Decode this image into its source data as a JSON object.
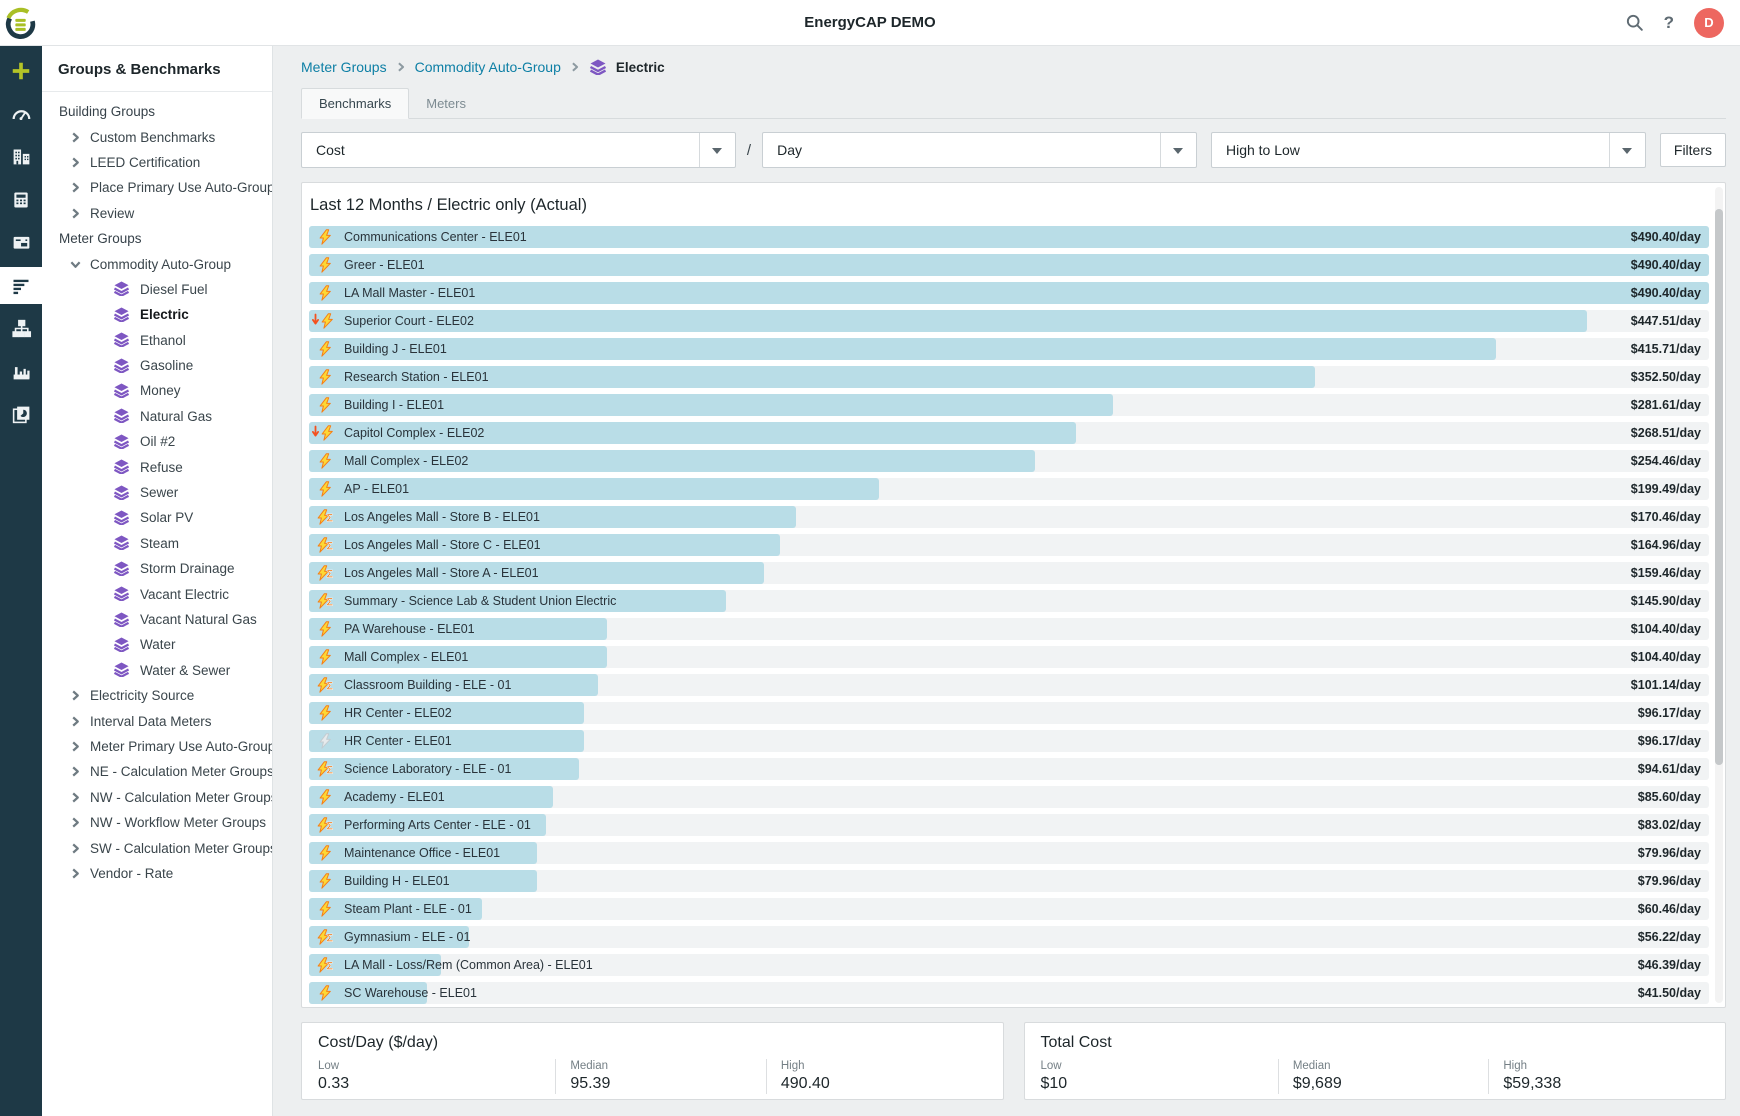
{
  "header": {
    "title": "EnergyCAP DEMO",
    "help_glyph": "?",
    "avatar_initial": "D"
  },
  "rail": {
    "items": [
      {
        "name": "add",
        "active": false
      },
      {
        "name": "dashboards",
        "active": false
      },
      {
        "name": "buildings",
        "active": false
      },
      {
        "name": "calculator",
        "active": false
      },
      {
        "name": "bills",
        "active": false
      },
      {
        "name": "groups-benchmarks",
        "active": true
      },
      {
        "name": "sitemap",
        "active": false
      },
      {
        "name": "plant",
        "active": false
      },
      {
        "name": "reports",
        "active": false
      }
    ]
  },
  "sidebar": {
    "title": "Groups & Benchmarks",
    "items": [
      {
        "label": "Building Groups",
        "level": 0,
        "icon": null
      },
      {
        "label": "Custom Benchmarks",
        "level": 1,
        "icon": "chevron-right"
      },
      {
        "label": "LEED Certification",
        "level": 1,
        "icon": "chevron-right"
      },
      {
        "label": "Place Primary Use Auto-Group",
        "level": 1,
        "icon": "chevron-right"
      },
      {
        "label": "Review",
        "level": 1,
        "icon": "chevron-right"
      },
      {
        "label": "Meter Groups",
        "level": 0,
        "icon": null
      },
      {
        "label": "Commodity Auto-Group",
        "level": 1,
        "icon": "chevron-down"
      },
      {
        "label": "Diesel Fuel",
        "level": 2,
        "icon": "layers"
      },
      {
        "label": "Electric",
        "level": 2,
        "icon": "layers",
        "selected": true
      },
      {
        "label": "Ethanol",
        "level": 2,
        "icon": "layers"
      },
      {
        "label": "Gasoline",
        "level": 2,
        "icon": "layers"
      },
      {
        "label": "Money",
        "level": 2,
        "icon": "layers"
      },
      {
        "label": "Natural Gas",
        "level": 2,
        "icon": "layers"
      },
      {
        "label": "Oil #2",
        "level": 2,
        "icon": "layers"
      },
      {
        "label": "Refuse",
        "level": 2,
        "icon": "layers"
      },
      {
        "label": "Sewer",
        "level": 2,
        "icon": "layers"
      },
      {
        "label": "Solar PV",
        "level": 2,
        "icon": "layers"
      },
      {
        "label": "Steam",
        "level": 2,
        "icon": "layers"
      },
      {
        "label": "Storm Drainage",
        "level": 2,
        "icon": "layers"
      },
      {
        "label": "Vacant Electric",
        "level": 2,
        "icon": "layers"
      },
      {
        "label": "Vacant Natural Gas",
        "level": 2,
        "icon": "layers"
      },
      {
        "label": "Water",
        "level": 2,
        "icon": "layers"
      },
      {
        "label": "Water & Sewer",
        "level": 2,
        "icon": "layers"
      },
      {
        "label": "Electricity Source",
        "level": 1,
        "icon": "chevron-right"
      },
      {
        "label": "Interval Data Meters",
        "level": 1,
        "icon": "chevron-right"
      },
      {
        "label": "Meter Primary Use Auto-Group",
        "level": 1,
        "icon": "chevron-right"
      },
      {
        "label": "NE - Calculation Meter Groups",
        "level": 1,
        "icon": "chevron-right"
      },
      {
        "label": "NW - Calculation Meter Groups",
        "level": 1,
        "icon": "chevron-right"
      },
      {
        "label": "NW - Workflow Meter Groups",
        "level": 1,
        "icon": "chevron-right"
      },
      {
        "label": "SW - Calculation Meter Groups",
        "level": 1,
        "icon": "chevron-right"
      },
      {
        "label": "Vendor - Rate",
        "level": 1,
        "icon": "chevron-right"
      }
    ]
  },
  "breadcrumb": {
    "links": [
      "Meter Groups",
      "Commodity Auto-Group"
    ],
    "current": "Electric"
  },
  "tabs": [
    {
      "label": "Benchmarks",
      "active": true
    },
    {
      "label": "Meters",
      "active": false
    }
  ],
  "controls": {
    "metric": "Cost",
    "separator": "/",
    "period": "Day",
    "sort": "High to Low",
    "filters_label": "Filters"
  },
  "chart_data": {
    "type": "bar",
    "title": "Last 12 Months / Electric only (Actual)",
    "unit": "$/day",
    "metric": "Cost",
    "period": "Day",
    "sort": "High to Low",
    "xlim": [
      0,
      490.4
    ],
    "max_value": 490.4,
    "rows": [
      {
        "label": "Communications Center - ELE01",
        "icon": "bolt",
        "value": 490.4,
        "display": "$490.40/day"
      },
      {
        "label": "Greer - ELE01",
        "icon": "bolt",
        "value": 490.4,
        "display": "$490.40/day"
      },
      {
        "label": "LA Mall Master - ELE01",
        "icon": "bolt",
        "value": 490.4,
        "display": "$490.40/day"
      },
      {
        "label": "Superior Court - ELE02",
        "icon": "bolt-down",
        "value": 447.51,
        "display": "$447.51/day"
      },
      {
        "label": "Building J - ELE01",
        "icon": "bolt",
        "value": 415.71,
        "display": "$415.71/day"
      },
      {
        "label": "Research Station - ELE01",
        "icon": "bolt",
        "value": 352.5,
        "display": "$352.50/day"
      },
      {
        "label": "Building I - ELE01",
        "icon": "bolt",
        "value": 281.61,
        "display": "$281.61/day"
      },
      {
        "label": "Capitol Complex - ELE02",
        "icon": "bolt-down",
        "value": 268.51,
        "display": "$268.51/day"
      },
      {
        "label": "Mall Complex - ELE02",
        "icon": "bolt",
        "value": 254.46,
        "display": "$254.46/day"
      },
      {
        "label": "AP - ELE01",
        "icon": "bolt",
        "value": 199.49,
        "display": "$199.49/day"
      },
      {
        "label": "Los Angeles Mall - Store B - ELE01",
        "icon": "bolt-sigma",
        "value": 170.46,
        "display": "$170.46/day"
      },
      {
        "label": "Los Angeles Mall - Store C - ELE01",
        "icon": "bolt-sigma",
        "value": 164.96,
        "display": "$164.96/day"
      },
      {
        "label": "Los Angeles Mall - Store A - ELE01",
        "icon": "bolt-sigma",
        "value": 159.46,
        "display": "$159.46/day"
      },
      {
        "label": "Summary - Science Lab & Student Union Electric",
        "icon": "bolt-sigma",
        "value": 145.9,
        "display": "$145.90/day"
      },
      {
        "label": "PA Warehouse - ELE01",
        "icon": "bolt",
        "value": 104.4,
        "display": "$104.40/day"
      },
      {
        "label": "Mall Complex - ELE01",
        "icon": "bolt",
        "value": 104.4,
        "display": "$104.40/day"
      },
      {
        "label": "Classroom Building - ELE - 01",
        "icon": "bolt-sigma",
        "value": 101.14,
        "display": "$101.14/day"
      },
      {
        "label": "HR Center - ELE02",
        "icon": "bolt",
        "value": 96.17,
        "display": "$96.17/day"
      },
      {
        "label": "HR Center - ELE01",
        "icon": "bolt-gray",
        "value": 96.17,
        "display": "$96.17/day"
      },
      {
        "label": "Science Laboratory - ELE - 01",
        "icon": "bolt-sigma",
        "value": 94.61,
        "display": "$94.61/day"
      },
      {
        "label": "Academy - ELE01",
        "icon": "bolt",
        "value": 85.6,
        "display": "$85.60/day"
      },
      {
        "label": "Performing Arts Center - ELE - 01",
        "icon": "bolt-sigma",
        "value": 83.02,
        "display": "$83.02/day"
      },
      {
        "label": "Maintenance Office - ELE01",
        "icon": "bolt",
        "value": 79.96,
        "display": "$79.96/day"
      },
      {
        "label": "Building H - ELE01",
        "icon": "bolt",
        "value": 79.96,
        "display": "$79.96/day"
      },
      {
        "label": "Steam Plant - ELE - 01",
        "icon": "bolt",
        "value": 60.46,
        "display": "$60.46/day"
      },
      {
        "label": "Gymnasium - ELE - 01",
        "icon": "bolt-sigma",
        "value": 56.22,
        "display": "$56.22/day"
      },
      {
        "label": "LA Mall - Loss/Rem (Common Area) - ELE01",
        "icon": "bolt-sigma",
        "value": 46.39,
        "display": "$46.39/day"
      },
      {
        "label": "SC Warehouse - ELE01",
        "icon": "bolt",
        "value": 41.5,
        "display": "$41.50/day"
      }
    ]
  },
  "stats": {
    "cost_per_day": {
      "title": "Cost/Day ($/day)",
      "low_label": "Low",
      "low": "0.33",
      "median_label": "Median",
      "median": "95.39",
      "high_label": "High",
      "high": "490.40"
    },
    "total_cost": {
      "title": "Total Cost",
      "low_label": "Low",
      "low": "$10",
      "median_label": "Median",
      "median": "$9,689",
      "high_label": "High",
      "high": "$59,338"
    }
  },
  "colors": {
    "accent_teal": "#0d7fa5",
    "bar_fill": "#b9dde7",
    "bar_track": "#f1f3f4",
    "rail_bg": "#1e3946",
    "avatar_bg": "#ed6760",
    "commodity_purple": "#7e57c2",
    "bolt_yellow": "#fdd835",
    "bolt_outline": "#f57f17"
  }
}
